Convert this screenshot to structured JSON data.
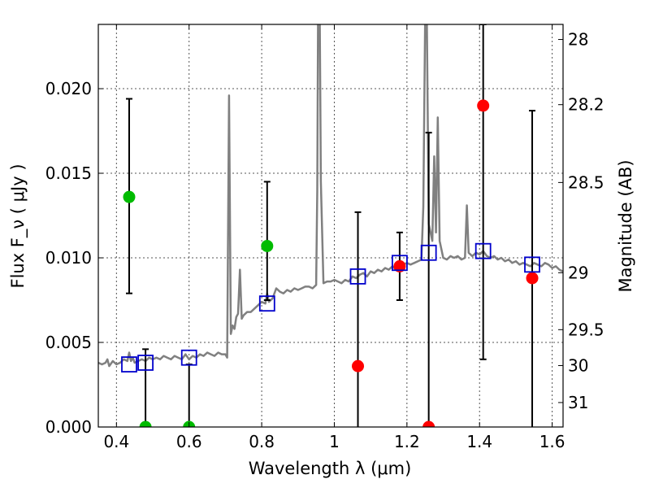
{
  "chart_data": {
    "type": "scatter",
    "title": "",
    "xlabel": "Wavelength  λ (μm)",
    "ylabel": "Flux  F_ν  ( μJy )",
    "ylabel_right": "Magnitude (AB)",
    "xlim": [
      0.35,
      1.63
    ],
    "ylim": [
      0.0,
      0.0238
    ],
    "grid": true,
    "xticks": [
      0.4,
      0.6,
      0.8,
      1.0,
      1.2,
      1.4,
      1.6
    ],
    "xtick_labels": [
      "0.4",
      "0.6",
      "0.8",
      "1",
      "1.2",
      "1.4",
      "1.6"
    ],
    "yticks": [
      0.0,
      0.005,
      0.01,
      0.015,
      0.02
    ],
    "ytick_labels": [
      "0.000",
      "0.005",
      "0.010",
      "0.015",
      "0.020"
    ],
    "right_ticks": [
      {
        "mag": 28,
        "label": "28"
      },
      {
        "mag": 28.2,
        "label": "28.2"
      },
      {
        "mag": 28.5,
        "label": "28.5"
      },
      {
        "mag": 29,
        "label": "29"
      },
      {
        "mag": 29.5,
        "label": "29.5"
      },
      {
        "mag": 30,
        "label": "30"
      },
      {
        "mag": 31,
        "label": "31"
      }
    ],
    "colors": {
      "spectrum": "#808080",
      "green_points": "#00bb00",
      "red_points": "#ff0000",
      "model_boxes": "#0000cc",
      "errorbars": "#000000",
      "grid": "#555555"
    },
    "series": [
      {
        "name": "spectrum",
        "kind": "line",
        "x": [
          0.35,
          0.36,
          0.37,
          0.375,
          0.38,
          0.39,
          0.4,
          0.41,
          0.42,
          0.43,
          0.435,
          0.44,
          0.445,
          0.45,
          0.46,
          0.47,
          0.48,
          0.49,
          0.5,
          0.51,
          0.52,
          0.53,
          0.54,
          0.55,
          0.56,
          0.57,
          0.58,
          0.59,
          0.6,
          0.61,
          0.62,
          0.63,
          0.64,
          0.65,
          0.66,
          0.67,
          0.68,
          0.69,
          0.7,
          0.705,
          0.71,
          0.715,
          0.72,
          0.725,
          0.73,
          0.735,
          0.74,
          0.745,
          0.75,
          0.76,
          0.77,
          0.78,
          0.79,
          0.8,
          0.81,
          0.815,
          0.82,
          0.83,
          0.84,
          0.85,
          0.86,
          0.87,
          0.88,
          0.89,
          0.9,
          0.91,
          0.92,
          0.93,
          0.94,
          0.95,
          0.953,
          0.955,
          0.96,
          0.963,
          0.97,
          0.98,
          0.99,
          1.0,
          1.01,
          1.02,
          1.03,
          1.04,
          1.05,
          1.06,
          1.07,
          1.08,
          1.09,
          1.1,
          1.11,
          1.12,
          1.13,
          1.14,
          1.15,
          1.16,
          1.17,
          1.18,
          1.19,
          1.2,
          1.21,
          1.22,
          1.23,
          1.24,
          1.245,
          1.25,
          1.255,
          1.26,
          1.27,
          1.275,
          1.28,
          1.285,
          1.29,
          1.3,
          1.31,
          1.32,
          1.33,
          1.34,
          1.35,
          1.36,
          1.365,
          1.37,
          1.38,
          1.39,
          1.4,
          1.41,
          1.42,
          1.43,
          1.44,
          1.45,
          1.46,
          1.47,
          1.48,
          1.49,
          1.5,
          1.51,
          1.52,
          1.53,
          1.54,
          1.55,
          1.56,
          1.57,
          1.58,
          1.59,
          1.6,
          1.61,
          1.62,
          1.63
        ],
        "values": [
          0.0038,
          0.0037,
          0.0038,
          0.004,
          0.0036,
          0.0039,
          0.0037,
          0.0038,
          0.004,
          0.0039,
          0.0044,
          0.0039,
          0.0041,
          0.0038,
          0.0039,
          0.004,
          0.0039,
          0.0041,
          0.004,
          0.0041,
          0.004,
          0.0042,
          0.0041,
          0.004,
          0.0042,
          0.0041,
          0.004,
          0.0043,
          0.004,
          0.0042,
          0.0041,
          0.0043,
          0.0042,
          0.0044,
          0.0043,
          0.0042,
          0.0044,
          0.0043,
          0.0043,
          0.0041,
          0.0196,
          0.0055,
          0.006,
          0.0058,
          0.0065,
          0.0067,
          0.0093,
          0.0064,
          0.0066,
          0.0068,
          0.0068,
          0.007,
          0.0072,
          0.0074,
          0.0073,
          0.0079,
          0.0074,
          0.0076,
          0.0082,
          0.008,
          0.0079,
          0.0081,
          0.008,
          0.0082,
          0.0081,
          0.0082,
          0.0083,
          0.0083,
          0.0082,
          0.0084,
          0.014,
          0.0238,
          0.0238,
          0.0145,
          0.0085,
          0.0086,
          0.0086,
          0.0087,
          0.0086,
          0.0085,
          0.0087,
          0.0086,
          0.0089,
          0.0088,
          0.009,
          0.0091,
          0.0089,
          0.0092,
          0.0091,
          0.0093,
          0.0092,
          0.0094,
          0.0093,
          0.0095,
          0.0093,
          0.0096,
          0.0096,
          0.0097,
          0.0096,
          0.0097,
          0.0098,
          0.0099,
          0.013,
          0.0238,
          0.0238,
          0.012,
          0.011,
          0.016,
          0.0115,
          0.0183,
          0.011,
          0.01,
          0.0099,
          0.0101,
          0.01,
          0.0101,
          0.0099,
          0.01,
          0.0131,
          0.0103,
          0.0101,
          0.0103,
          0.0102,
          0.0104,
          0.0101,
          0.01,
          0.0101,
          0.0099,
          0.01,
          0.0098,
          0.0099,
          0.0097,
          0.0098,
          0.0096,
          0.0097,
          0.0096,
          0.0095,
          0.0097,
          0.0096,
          0.0095,
          0.0097,
          0.0096,
          0.0094,
          0.0095,
          0.0093,
          0.0092
        ]
      },
      {
        "name": "green_points",
        "kind": "points",
        "x": [
          0.435,
          0.48,
          0.6,
          0.815
        ],
        "values": [
          0.0136,
          0.0,
          0.0,
          0.0107
        ],
        "err_low": [
          0.0079,
          0.0,
          0.0,
          0.0075
        ],
        "err_high": [
          0.0194,
          0.0046,
          0.0037,
          0.0145
        ]
      },
      {
        "name": "red_points",
        "kind": "points",
        "x": [
          1.065,
          1.18,
          1.26,
          1.41,
          1.545
        ],
        "values": [
          0.0036,
          0.0095,
          0.0,
          0.019,
          0.0088
        ],
        "err_low": [
          0.0,
          0.0075,
          0.0,
          0.004,
          0.0
        ],
        "err_high": [
          0.0127,
          0.0115,
          0.0174,
          0.0238,
          0.0187
        ]
      },
      {
        "name": "model_boxes",
        "kind": "open-squares",
        "x": [
          0.435,
          0.48,
          0.6,
          0.815,
          1.065,
          1.18,
          1.26,
          1.41,
          1.545
        ],
        "values": [
          0.0037,
          0.0038,
          0.0041,
          0.0073,
          0.0089,
          0.0097,
          0.0103,
          0.0104,
          0.0096
        ]
      }
    ]
  }
}
